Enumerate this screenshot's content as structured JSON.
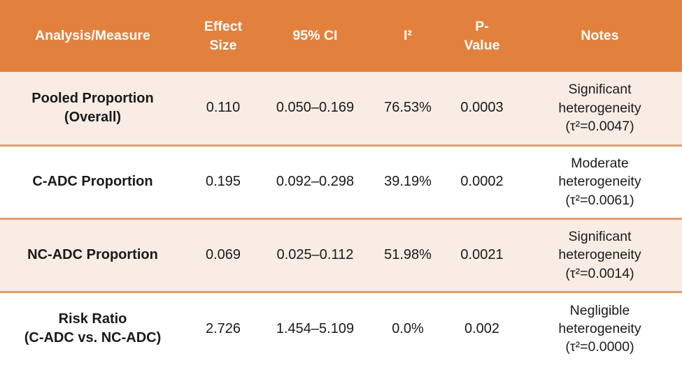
{
  "theme": {
    "header_bg": "#E2813D",
    "header_text": "#FFFFFF",
    "band_bg": "#F8ECE5",
    "row_bg": "#FFFFFF",
    "divider": "#E1A06C",
    "body_text": "#1A1A1A"
  },
  "table": {
    "columns": {
      "measure": "Analysis/Measure",
      "effect": "Effect\nSize",
      "ci": "95% CI",
      "i2": "I²",
      "p": "P-\nValue",
      "notes": "Notes"
    },
    "rows": [
      {
        "measure": "Pooled Proportion\n(Overall)",
        "effect": "0.110",
        "ci": "0.050–0.169",
        "i2": "76.53%",
        "p": "0.0003",
        "notes": "Significant\nheterogeneity\n(τ²=0.0047)"
      },
      {
        "measure": "C-ADC Proportion",
        "effect": "0.195",
        "ci": "0.092–0.298",
        "i2": "39.19%",
        "p": "0.0002",
        "notes": "Moderate\nheterogeneity\n(τ²=0.0061)"
      },
      {
        "measure": "NC-ADC Proportion",
        "effect": "0.069",
        "ci": "0.025–0.112",
        "i2": "51.98%",
        "p": "0.0021",
        "notes": "Significant\nheterogeneity\n(τ²=0.0014)"
      },
      {
        "measure": "Risk Ratio\n(C-ADC vs. NC-ADC)",
        "effect": "2.726",
        "ci": "1.454–5.109",
        "i2": "0.0%",
        "p": "0.002",
        "notes": "Negligible\nheterogeneity\n(τ²=0.0000)"
      }
    ]
  }
}
